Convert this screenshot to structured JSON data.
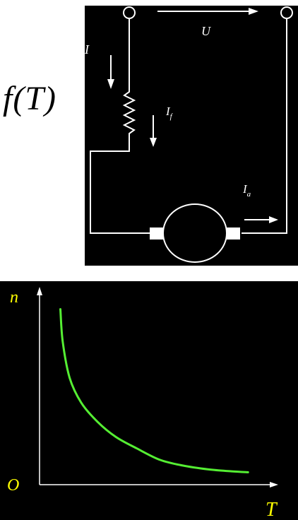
{
  "formula": {
    "text": "f(T)"
  },
  "circuit": {
    "labels": {
      "voltage": "U",
      "current": "I",
      "field_current": "I",
      "field_sub": "f",
      "armature_current": "I",
      "armature_sub": "a"
    },
    "colors": {
      "background": "#000000",
      "wire": "#ffffff"
    }
  },
  "chart_data": {
    "type": "line",
    "title": "",
    "xlabel": "T",
    "ylabel": "n",
    "origin_label": "O",
    "xlim": [
      0,
      10
    ],
    "ylim": [
      0,
      10
    ],
    "grid": false,
    "series": [
      {
        "color": "#55ee33",
        "x": [
          0.9,
          1.0,
          1.3,
          1.8,
          2.5,
          3.3,
          4.2,
          5.2,
          6.2,
          7.3,
          8.3,
          9.0
        ],
        "y": [
          9.2,
          7.5,
          5.6,
          4.3,
          3.3,
          2.5,
          1.9,
          1.3,
          1.0,
          0.8,
          0.7,
          0.65
        ]
      }
    ],
    "colors": {
      "background": "#000000",
      "axes": "#ffffff",
      "labels": "#ffff00",
      "curve": "#55ee33"
    }
  }
}
